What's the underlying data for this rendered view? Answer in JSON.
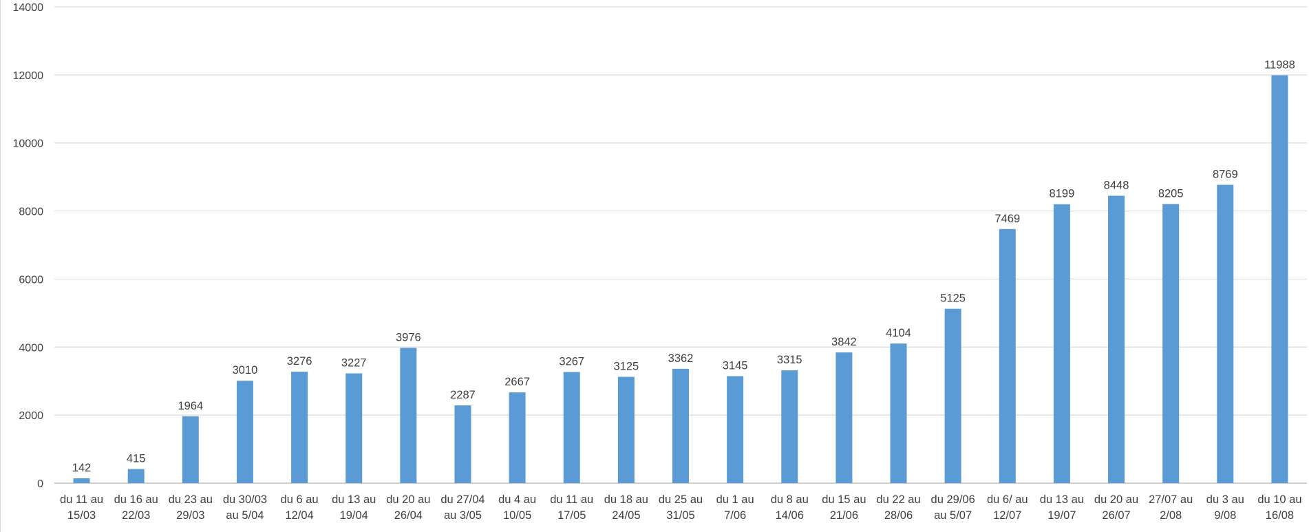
{
  "chart_data": {
    "type": "bar",
    "title": "",
    "xlabel": "",
    "ylabel": "",
    "ylim": [
      0,
      14000
    ],
    "yticks": [
      0,
      2000,
      4000,
      6000,
      8000,
      10000,
      12000,
      14000
    ],
    "grid": true,
    "legend": "none",
    "bar_color": "#5b9bd5",
    "categories": [
      [
        "du 11 au",
        "15/03"
      ],
      [
        "du 16 au",
        "22/03"
      ],
      [
        "du 23 au",
        "29/03"
      ],
      [
        "du 30/03",
        "au 5/04"
      ],
      [
        "du 6 au",
        "12/04"
      ],
      [
        "du 13 au",
        "19/04"
      ],
      [
        "du 20 au",
        "26/04"
      ],
      [
        "du 27/04",
        "au 3/05"
      ],
      [
        "du 4 au",
        "10/05"
      ],
      [
        "du 11 au",
        "17/05"
      ],
      [
        "du 18 au",
        "24/05"
      ],
      [
        "du 25 au",
        "31/05"
      ],
      [
        "du 1 au",
        "7/06"
      ],
      [
        "du 8 au",
        "14/06"
      ],
      [
        "du 15 au",
        "21/06"
      ],
      [
        "du 22 au",
        "28/06"
      ],
      [
        "du 29/06",
        "au 5/07"
      ],
      [
        "du 6/ au",
        "12/07"
      ],
      [
        "du 13 au",
        "19/07"
      ],
      [
        "du 20 au",
        "26/07"
      ],
      [
        "27/07 au",
        "2/08"
      ],
      [
        "du 3 au",
        "9/08"
      ],
      [
        "du 10 au",
        "16/08"
      ]
    ],
    "values": [
      142,
      415,
      1964,
      3010,
      3276,
      3227,
      3976,
      2287,
      2667,
      3267,
      3125,
      3362,
      3145,
      3315,
      3842,
      4104,
      5125,
      7469,
      8199,
      8448,
      8205,
      8769,
      11988
    ]
  }
}
